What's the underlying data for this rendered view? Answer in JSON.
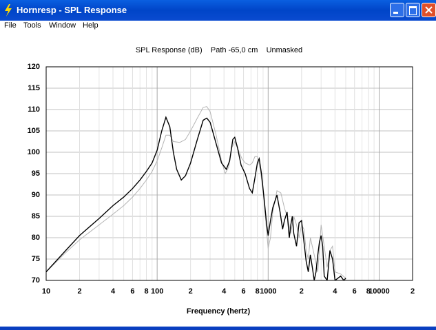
{
  "window": {
    "title": "Hornresp - SPL Response"
  },
  "menu": [
    "File",
    "Tools",
    "Window",
    "Help"
  ],
  "chart_data": {
    "type": "line",
    "title": "SPL Response (dB)    Path -65,0 cm    Unmasked",
    "x_label": "Frequency (hertz)",
    "x_scale": "log",
    "xlim": [
      10,
      20000
    ],
    "xticks": [
      10,
      {
        "value": 20,
        "label": "2"
      },
      {
        "value": 40,
        "label": "4"
      },
      {
        "value": 60,
        "label": "6"
      },
      {
        "value": 80,
        "label": "8"
      },
      100,
      {
        "value": 200,
        "label": "2"
      },
      {
        "value": 400,
        "label": "4"
      },
      {
        "value": 600,
        "label": "6"
      },
      {
        "value": 800,
        "label": "8"
      },
      1000,
      {
        "value": 2000,
        "label": "2"
      },
      {
        "value": 4000,
        "label": "4"
      },
      {
        "value": 6000,
        "label": "6"
      },
      {
        "value": 8000,
        "label": "8"
      },
      10000,
      {
        "value": 20000,
        "label": "2"
      }
    ],
    "xgrid_minor": [
      30,
      50,
      70,
      90,
      300,
      500,
      700,
      900,
      3000,
      5000,
      7000,
      9000
    ],
    "ylim": [
      70,
      120
    ],
    "yticks": [
      70,
      75,
      80,
      85,
      90,
      95,
      100,
      105,
      110,
      115,
      120
    ],
    "grid": true,
    "series": [
      {
        "color": "#b4b4b4",
        "x": [
          10,
          15,
          20,
          30,
          40,
          50,
          60,
          70,
          80,
          90,
          100,
          110,
          120,
          130,
          140,
          160,
          180,
          200,
          230,
          260,
          280,
          300,
          340,
          380,
          410,
          440,
          470,
          500,
          540,
          580,
          620,
          680,
          720,
          760,
          800,
          850,
          900,
          950,
          1000,
          1050,
          1100,
          1200,
          1300,
          1400,
          1500,
          1600,
          1700,
          1800,
          1900,
          2000,
          2100,
          2200,
          2300,
          2400,
          2600,
          2800,
          3000,
          3200,
          3400,
          3600,
          3800,
          4000,
          4500,
          5000
        ],
        "values": [
          72,
          76.5,
          79.5,
          83,
          85.5,
          87.5,
          89.5,
          91.5,
          93.5,
          95.5,
          98,
          101,
          104,
          104,
          102.5,
          102.3,
          103,
          105,
          108,
          110.5,
          110.7,
          109.5,
          104,
          98,
          95,
          96.5,
          101,
          102.5,
          100.5,
          98.5,
          97.5,
          97,
          97.5,
          99,
          99,
          96,
          91,
          84,
          77.5,
          80,
          86,
          91,
          90.5,
          87,
          84.5,
          81,
          85,
          83,
          80,
          83,
          82,
          77,
          75,
          80,
          76,
          72,
          83,
          78,
          73,
          77,
          78,
          72,
          71.5,
          70.5
        ]
      },
      {
        "color": "#000000",
        "x": [
          10,
          15,
          20,
          30,
          40,
          50,
          60,
          70,
          80,
          90,
          100,
          110,
          120,
          130,
          140,
          150,
          165,
          180,
          200,
          230,
          260,
          280,
          300,
          340,
          380,
          420,
          450,
          480,
          500,
          530,
          570,
          620,
          680,
          720,
          760,
          800,
          830,
          870,
          920,
          970,
          1000,
          1050,
          1100,
          1200,
          1280,
          1350,
          1400,
          1480,
          1550,
          1600,
          1650,
          1700,
          1800,
          1900,
          2000,
          2100,
          2200,
          2300,
          2400,
          2500,
          2600,
          2700,
          2800,
          2900,
          3000,
          3100,
          3200,
          3400,
          3600,
          3800,
          4000,
          4500,
          4800,
          5000
        ],
        "values": [
          72,
          77,
          80.5,
          84.5,
          87.5,
          89.5,
          91.5,
          93.5,
          95.5,
          97.5,
          100.5,
          105,
          108.2,
          106,
          100,
          96,
          93.5,
          94.5,
          97.5,
          103,
          107.5,
          108,
          107,
          102,
          97.5,
          96,
          98,
          103,
          103.5,
          101,
          97,
          95,
          91.5,
          90.5,
          94,
          97.5,
          98.5,
          95,
          89,
          83,
          80.5,
          84,
          87,
          90,
          86,
          82,
          84,
          86,
          80,
          83,
          85,
          81,
          78,
          83.5,
          84,
          79,
          74.5,
          72,
          76,
          73,
          70,
          72,
          76,
          79,
          80.5,
          78,
          71,
          70,
          77,
          75,
          70,
          71,
          70,
          70.5
        ]
      }
    ]
  }
}
